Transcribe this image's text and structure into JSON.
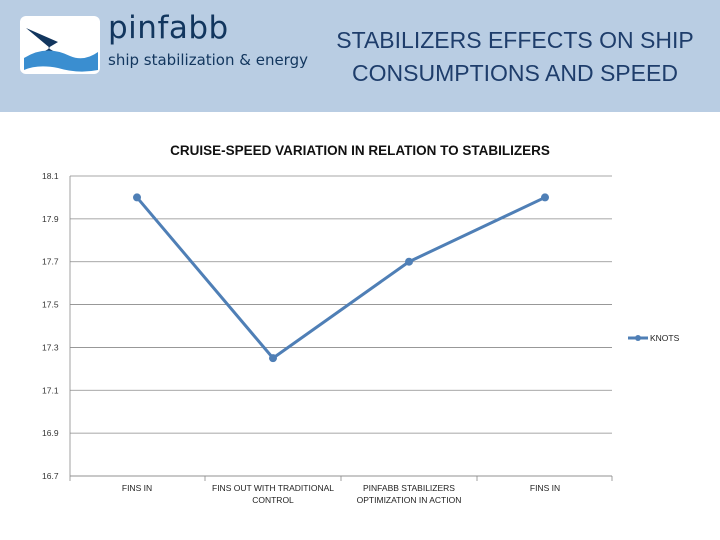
{
  "header": {
    "brand_name": "pinfabb",
    "brand_tagline": "ship stabilization & energy",
    "title_line1": "STABILIZERS EFFECTS ON SHIP",
    "title_line2": "CONSUMPTIONS AND SPEED",
    "background_color": "#b9cde3",
    "title_color": "#1e3d6b"
  },
  "chart_data": {
    "type": "line",
    "title": "CRUISE-SPEED VARIATION IN RELATION TO STABILIZERS",
    "categories": [
      [
        "FINS IN"
      ],
      [
        "FINS OUT WITH TRADITIONAL",
        "CONTROL"
      ],
      [
        "PINFABB STABILIZERS",
        "OPTIMIZATION IN ACTION"
      ],
      [
        "FINS IN"
      ]
    ],
    "series": [
      {
        "name": "KNOTS",
        "values": [
          18.0,
          17.25,
          17.7,
          18.0
        ],
        "color": "#4f7fb6"
      }
    ],
    "yticks": [
      "18.1",
      "17.9",
      "17.7",
      "17.5",
      "17.3",
      "17.1",
      "16.9",
      "16.7"
    ],
    "ylim": [
      16.7,
      18.1
    ],
    "grid": true,
    "legend_position": "right"
  }
}
